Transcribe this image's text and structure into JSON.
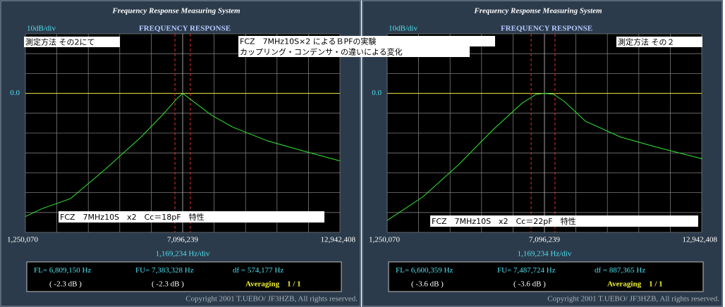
{
  "panels": [
    {
      "title": "Frequency Response Measuring System",
      "scale_label": "10dB/div",
      "heading": "FREQUENCY RESPONSE",
      "notes": [
        "測定方法 その2にて",
        "FCZ　7MHz10S×2 によるＢPFの実験",
        "カップリング・コンデンサ・の違いによる変化",
        "FCZ　7MHz10S　x2　Cc＝18pF　特性"
      ],
      "chart_data": {
        "type": "line",
        "color": "#33e633",
        "xlim": [
          1250070,
          12942408
        ],
        "ylim": [
          -70,
          30
        ],
        "xticks": [
          {
            "value": 1250070,
            "label": "1,250,070"
          },
          {
            "value": 7096239,
            "label": "7,096,239"
          },
          {
            "value": 12942408,
            "label": "12,942,408"
          }
        ],
        "yticks": [
          {
            "value": 0,
            "label": "0.0"
          }
        ],
        "xgrid": [
          1250070,
          2419304,
          3588538,
          4757771,
          5927005,
          7096239,
          8265473,
          9434707,
          10603940,
          11773174,
          12942408
        ],
        "ygrid": [
          -70,
          -60,
          -50,
          -40,
          -30,
          -20,
          -10,
          0,
          10,
          20,
          30
        ],
        "x_div_label": "1,169,234 Hz/div",
        "x": [
          1250070,
          1879000,
          2928000,
          4239000,
          5550000,
          6336000,
          6860000,
          7096000,
          7385000,
          8171000,
          8958000,
          10268000,
          11579000,
          12942000
        ],
        "values": [
          -62,
          -58,
          -53,
          -38,
          -22,
          -11,
          -3,
          0,
          -3,
          -11,
          -17,
          -24,
          -29,
          -34
        ]
      },
      "fl_name": "FL=",
      "fl": {
        "value": 6809150,
        "label": "6,809,150"
      },
      "fu_name": "FU=",
      "fu": {
        "value": 7383328,
        "label": "7,383,328"
      },
      "df_name": "df =",
      "df": "574,177",
      "unit": "Hz",
      "fl_db": "( -2.3 dB )",
      "fu_db": "( -2.3 dB )",
      "averaging": "Averaging　1 / 1",
      "copyright": "Copyright 2001 T.UEBO/ JF3HZB, All rights reserved."
    },
    {
      "title": "Frequency Response Measuring System",
      "scale_label": "10dB/div",
      "heading": "FREQUENCY RESPONSE",
      "notes": [
        "測定方法 その２",
        "FCZ　7MHz10S　x2　Cc＝22pF　特性"
      ],
      "chart_data": {
        "type": "line",
        "color": "#33e633",
        "xlim": [
          1250070,
          12942408
        ],
        "ylim": [
          -70,
          30
        ],
        "xticks": [
          {
            "value": 1250070,
            "label": "1,250,070"
          },
          {
            "value": 7096239,
            "label": "7,096,239"
          },
          {
            "value": 12942408,
            "label": "12,942,408"
          }
        ],
        "yticks": [
          {
            "value": 0,
            "label": "0.0"
          }
        ],
        "xgrid": [
          1250070,
          2419304,
          3588538,
          4757771,
          5927005,
          7096239,
          8265473,
          9434707,
          10603940,
          11773174,
          12942408
        ],
        "ygrid": [
          -70,
          -60,
          -50,
          -40,
          -30,
          -20,
          -10,
          0,
          10,
          20,
          30
        ],
        "x_div_label": "1,169,234 Hz/div",
        "x": [
          1250070,
          2587000,
          3898000,
          5209000,
          6257000,
          6782000,
          7096000,
          7437000,
          7830000,
          8617000,
          9927000,
          11238000,
          12968000
        ],
        "values": [
          -64,
          -52,
          -36,
          -18,
          -5,
          -0.5,
          0,
          -0.5,
          -4,
          -14,
          -22,
          -27,
          -33
        ]
      },
      "fl_name": "FL=",
      "fl": {
        "value": 6600359,
        "label": "6,600,359"
      },
      "fu_name": "FU=",
      "fu": {
        "value": 7487724,
        "label": "7,487,724"
      },
      "df_name": "df =",
      "df": "887,365",
      "unit": "Hz",
      "fl_db": "( -3.6 dB )",
      "fu_db": "( -3.6 dB )",
      "averaging": "Averaging　1 / 1",
      "copyright": "Copyright 2001 T.UEBO/ JF3HZB, All rights reserved."
    }
  ]
}
